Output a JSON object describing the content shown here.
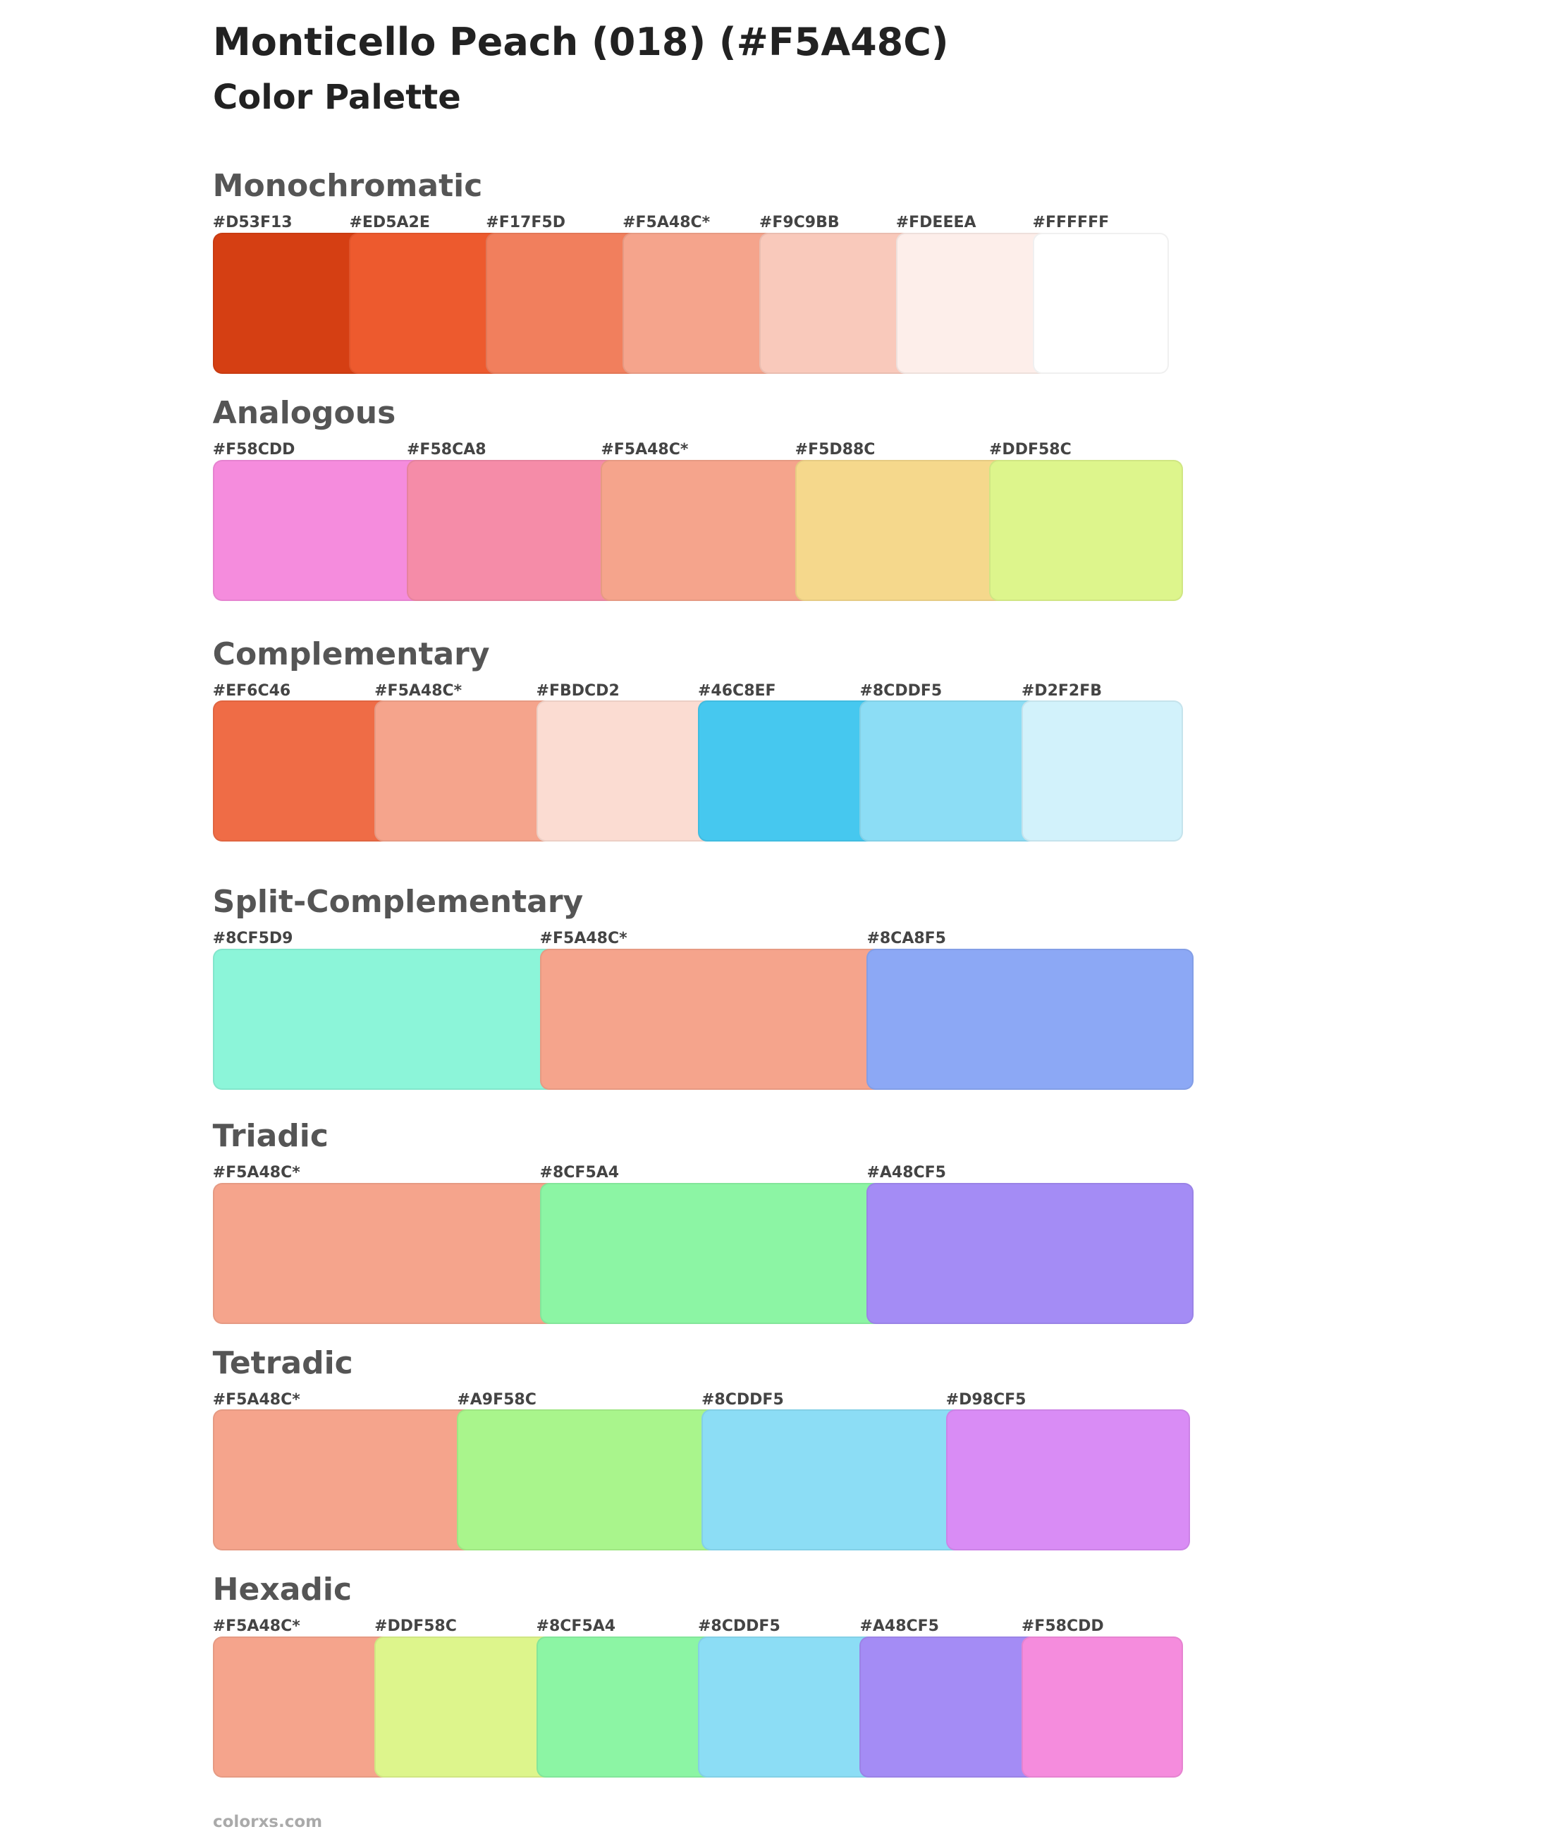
{
  "header": {
    "title": "Monticello Peach (018) (#F5A48C)",
    "subtitle": "Color Palette"
  },
  "sections": [
    {
      "name": "Monochromatic",
      "swatches": [
        {
          "label": "#D53F13",
          "color": "#D53F13"
        },
        {
          "label": "#ED5A2E",
          "color": "#ED5A2E"
        },
        {
          "label": "#F17F5D",
          "color": "#F17F5D"
        },
        {
          "label": "#F5A48C*",
          "color": "#F5A48C"
        },
        {
          "label": "#F9C9BB",
          "color": "#F9C9BB"
        },
        {
          "label": "#FDEEEA",
          "color": "#FDEEEA"
        },
        {
          "label": "#FFFFFF",
          "color": "#FFFFFF"
        }
      ]
    },
    {
      "name": "Analogous",
      "swatches": [
        {
          "label": "#F58CDD",
          "color": "#F58CDD"
        },
        {
          "label": "#F58CA8",
          "color": "#F58CA8"
        },
        {
          "label": "#F5A48C*",
          "color": "#F5A48C"
        },
        {
          "label": "#F5D88C",
          "color": "#F5D88C"
        },
        {
          "label": "#DDF58C",
          "color": "#DDF58C"
        }
      ]
    },
    {
      "name": "Complementary",
      "swatches": [
        {
          "label": "#EF6C46",
          "color": "#EF6C46"
        },
        {
          "label": "#F5A48C*",
          "color": "#F5A48C"
        },
        {
          "label": "#FBDCD2",
          "color": "#FBDCD2"
        },
        {
          "label": "#46C8EF",
          "color": "#46C8EF"
        },
        {
          "label": "#8CDDF5",
          "color": "#8CDDF5"
        },
        {
          "label": "#D2F2FB",
          "color": "#D2F2FB"
        }
      ]
    },
    {
      "name": "Split-Complementary",
      "swatches": [
        {
          "label": "#8CF5D9",
          "color": "#8CF5D9"
        },
        {
          "label": "#F5A48C*",
          "color": "#F5A48C"
        },
        {
          "label": "#8CA8F5",
          "color": "#8CA8F5"
        }
      ]
    },
    {
      "name": "Triadic",
      "swatches": [
        {
          "label": "#F5A48C*",
          "color": "#F5A48C"
        },
        {
          "label": "#8CF5A4",
          "color": "#8CF5A4"
        },
        {
          "label": "#A48CF5",
          "color": "#A48CF5"
        }
      ]
    },
    {
      "name": "Tetradic",
      "swatches": [
        {
          "label": "#F5A48C*",
          "color": "#F5A48C"
        },
        {
          "label": "#A9F58C",
          "color": "#A9F58C"
        },
        {
          "label": "#8CDDF5",
          "color": "#8CDDF5"
        },
        {
          "label": "#D98CF5",
          "color": "#D98CF5"
        }
      ]
    },
    {
      "name": "Hexadic",
      "swatches": [
        {
          "label": "#F5A48C*",
          "color": "#F5A48C"
        },
        {
          "label": "#DDF58C",
          "color": "#DDF58C"
        },
        {
          "label": "#8CF5A4",
          "color": "#8CF5A4"
        },
        {
          "label": "#8CDDF5",
          "color": "#8CDDF5"
        },
        {
          "label": "#A48CF5",
          "color": "#A48CF5"
        },
        {
          "label": "#F58CDD",
          "color": "#F58CDD"
        }
      ]
    }
  ],
  "footer": "colorxs.com"
}
